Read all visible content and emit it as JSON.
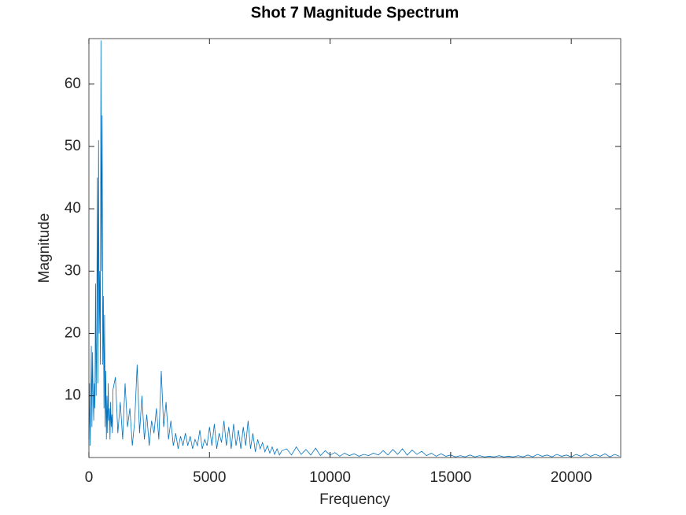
{
  "chart_data": {
    "type": "line",
    "title": "Shot 7 Magnitude Spectrum",
    "xlabel": "Frequency",
    "ylabel": "Magnitude",
    "color": "#0072bd",
    "xlim": [
      0,
      22050
    ],
    "ylim": [
      0.1,
      67.3
    ],
    "xticks": [
      0,
      5000,
      10000,
      15000,
      20000
    ],
    "yticks": [
      10,
      20,
      30,
      40,
      50,
      60
    ],
    "grid": false,
    "x": [
      0,
      25,
      50,
      75,
      100,
      125,
      150,
      175,
      200,
      225,
      250,
      275,
      300,
      325,
      350,
      375,
      400,
      425,
      450,
      475,
      500,
      525,
      550,
      575,
      600,
      625,
      650,
      675,
      700,
      725,
      750,
      775,
      800,
      825,
      850,
      875,
      900,
      925,
      950,
      975,
      1000,
      1100,
      1200,
      1300,
      1400,
      1500,
      1600,
      1700,
      1800,
      1900,
      2000,
      2100,
      2200,
      2300,
      2400,
      2500,
      2600,
      2700,
      2800,
      2900,
      3000,
      3100,
      3200,
      3300,
      3400,
      3500,
      3600,
      3700,
      3800,
      3900,
      4000,
      4100,
      4200,
      4300,
      4400,
      4500,
      4600,
      4700,
      4800,
      4900,
      5000,
      5100,
      5200,
      5300,
      5400,
      5500,
      5600,
      5700,
      5800,
      5900,
      6000,
      6100,
      6200,
      6300,
      6400,
      6500,
      6600,
      6700,
      6800,
      6900,
      7000,
      7100,
      7200,
      7300,
      7400,
      7500,
      7600,
      7700,
      7800,
      7900,
      8000,
      8200,
      8400,
      8600,
      8800,
      9000,
      9200,
      9400,
      9600,
      9800,
      10000,
      10200,
      10400,
      10600,
      10800,
      11000,
      11200,
      11400,
      11600,
      11800,
      12000,
      12200,
      12400,
      12600,
      12800,
      13000,
      13200,
      13400,
      13600,
      13800,
      14000,
      14200,
      14400,
      14600,
      14800,
      15000,
      15200,
      15400,
      15600,
      15800,
      16000,
      16200,
      16400,
      16600,
      16800,
      17000,
      17200,
      17400,
      17600,
      17800,
      18000,
      18200,
      18400,
      18600,
      18800,
      19000,
      19200,
      19400,
      19600,
      19800,
      20000,
      20200,
      20400,
      20600,
      20800,
      21000,
      21200,
      21400,
      21600,
      21800,
      22000
    ],
    "values": [
      3,
      12,
      2,
      8,
      18,
      5,
      17,
      10,
      6,
      12,
      8,
      28,
      10,
      20,
      45,
      12,
      51,
      20,
      30,
      15,
      67,
      30,
      55,
      15,
      26,
      8,
      23,
      5,
      14,
      3,
      10,
      4,
      12,
      6,
      8,
      3,
      9,
      5,
      7,
      4,
      11,
      13,
      4,
      9,
      3,
      12,
      5,
      8,
      2,
      6,
      15,
      4,
      10,
      3,
      7,
      2,
      6,
      4,
      8,
      3,
      14,
      5,
      9,
      3,
      6,
      2,
      4,
      1.5,
      3.5,
      2,
      4,
      2,
      3.5,
      1.5,
      3,
      2,
      4.5,
      1.5,
      3,
      2,
      5,
      2,
      5.5,
      1.5,
      4,
      2.5,
      6,
      2,
      5,
      1.5,
      5.5,
      2,
      4.5,
      1.5,
      5,
      2,
      6,
      1.5,
      4,
      1,
      3,
      1.5,
      2.5,
      1,
      2,
      0.8,
      1.8,
      0.6,
      1.5,
      0.5,
      1.2,
      1.5,
      0.5,
      1.8,
      0.6,
      1.4,
      0.5,
      1.6,
      0.4,
      1.2,
      0.5,
      0.9,
      0.3,
      0.8,
      0.4,
      0.7,
      0.3,
      0.6,
      0.4,
      0.8,
      0.5,
      1.2,
      0.5,
      1.4,
      0.6,
      1.5,
      0.5,
      1.3,
      0.6,
      1.1,
      0.4,
      0.8,
      0.3,
      0.7,
      0.3,
      0.5,
      0.2,
      0.4,
      0.2,
      0.5,
      0.2,
      0.4,
      0.2,
      0.3,
      0.2,
      0.4,
      0.2,
      0.3,
      0.2,
      0.4,
      0.2,
      0.5,
      0.2,
      0.6,
      0.3,
      0.5,
      0.2,
      0.6,
      0.3,
      0.5,
      0.2,
      0.6,
      0.3,
      0.7,
      0.3,
      0.6,
      0.3,
      0.7,
      0.2,
      0.6,
      0.3
    ]
  }
}
